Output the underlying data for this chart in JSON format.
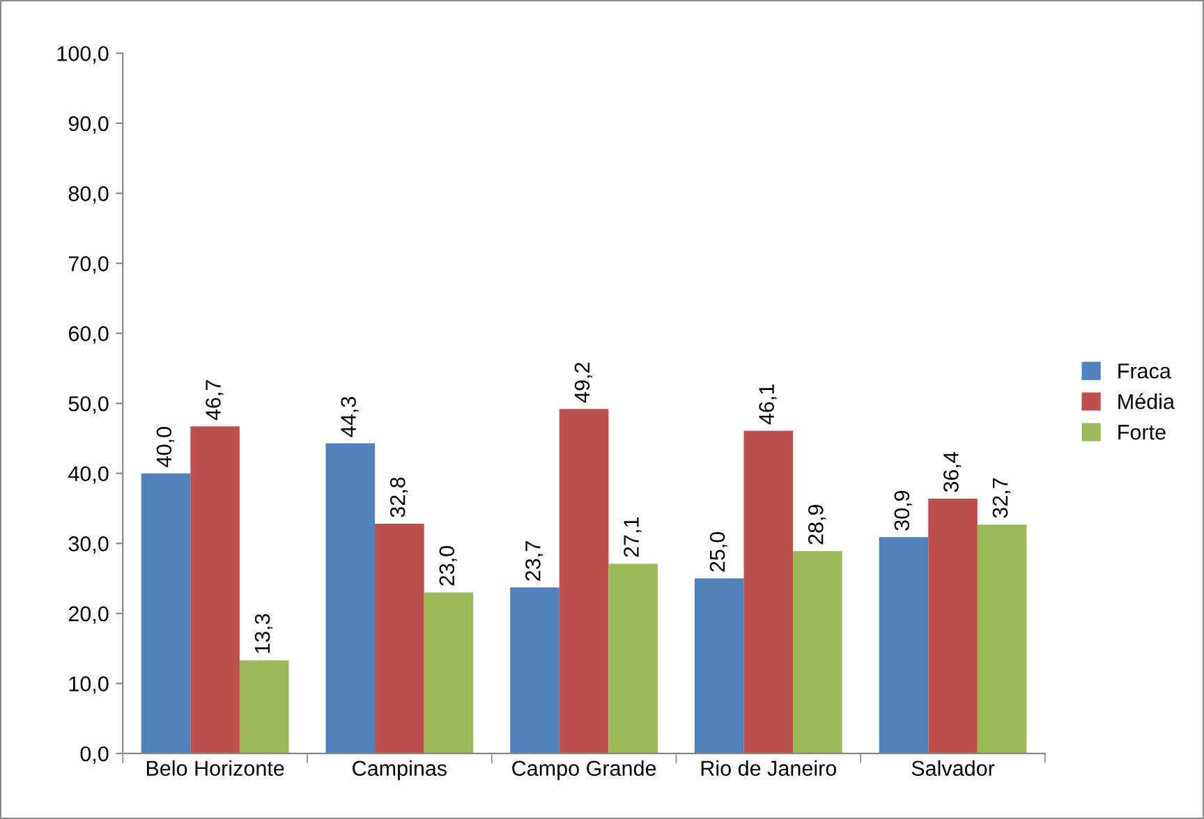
{
  "chart_data": {
    "type": "bar",
    "categories": [
      "Belo Horizonte",
      "Campinas",
      "Campo Grande",
      "Rio de Janeiro",
      "Salvador"
    ],
    "series": [
      {
        "name": "Fraca",
        "color": "#4f81bd",
        "values": [
          40.0,
          44.3,
          23.7,
          25.0,
          30.9
        ],
        "value_labels": [
          "40,0",
          "44,3",
          "23,7",
          "25,0",
          "30,9"
        ]
      },
      {
        "name": "Média",
        "color": "#c0504d",
        "values": [
          46.7,
          32.8,
          49.2,
          46.1,
          36.4
        ],
        "value_labels": [
          "46,7",
          "32,8",
          "49,2",
          "46,1",
          "36,4"
        ]
      },
      {
        "name": "Forte",
        "color": "#9bbb59",
        "values": [
          13.3,
          23.0,
          27.1,
          28.9,
          32.7
        ],
        "value_labels": [
          "13,3",
          "23,0",
          "27,1",
          "28,9",
          "32,7"
        ]
      }
    ],
    "ylim": [
      0,
      100
    ],
    "yticks": [
      {
        "value": 0,
        "label": "0,0"
      },
      {
        "value": 10,
        "label": "10,0"
      },
      {
        "value": 20,
        "label": "20,0"
      },
      {
        "value": 30,
        "label": "30,0"
      },
      {
        "value": 40,
        "label": "40,0"
      },
      {
        "value": 50,
        "label": "50,0"
      },
      {
        "value": 60,
        "label": "60,0"
      },
      {
        "value": 70,
        "label": "70,0"
      },
      {
        "value": 80,
        "label": "80,0"
      },
      {
        "value": 90,
        "label": "90,0"
      },
      {
        "value": 100,
        "label": "100,0"
      }
    ],
    "grid": false,
    "legend": "right"
  }
}
